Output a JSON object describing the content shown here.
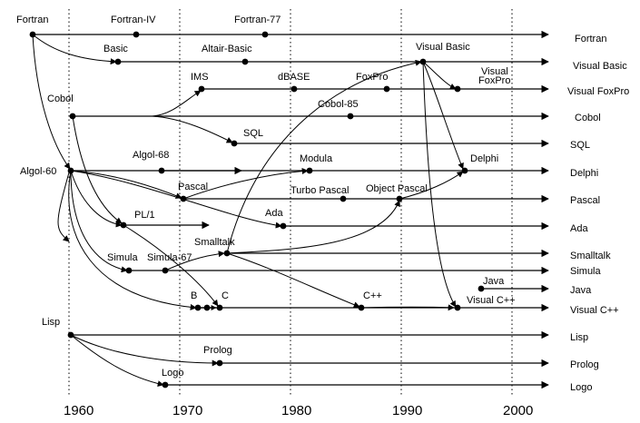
{
  "year_ticks": [
    "1960",
    "1970",
    "1980",
    "1990",
    "2000"
  ],
  "languages": [
    "Fortran",
    "Visual Basic",
    "Visual FoxPro",
    "Cobol",
    "SQL",
    "Delphi",
    "Pascal",
    "Ada",
    "Smalltalk",
    "Simula",
    "Java",
    "Visual C++",
    "Lisp",
    "Prolog",
    "Logo"
  ],
  "nodes": {
    "fortran": "Fortran",
    "fortran_iv": "Fortran-IV",
    "fortran_77": "Fortran-77",
    "basic": "Basic",
    "altair_basic": "Altair-Basic",
    "visual_basic": "Visual Basic",
    "ims": "IMS",
    "dbase": "dBASE",
    "foxpro": "FoxPro",
    "visual_foxpro": "Visual\nFoxPro",
    "cobol": "Cobol",
    "cobol_85": "Cobol-85",
    "sql": "SQL",
    "algol_68": "Algol-68",
    "modula": "Modula",
    "delphi": "Delphi",
    "algol_60": "Algol-60",
    "pascal": "Pascal",
    "turbo_pascal": "Turbo Pascal",
    "object_pascal": "Object Pascal",
    "pl1": "PL/1",
    "ada": "Ada",
    "smalltalk": "Smalltalk",
    "simula": "Simula",
    "simula_67": "Simula-67",
    "java": "Java",
    "b": "B",
    "c": "C",
    "cpp": "C++",
    "visual_cpp": "Visual C++",
    "lisp": "Lisp",
    "prolog": "Prolog",
    "logo": "Logo"
  },
  "edges": [
    [
      "fortran",
      "algol_60"
    ],
    [
      "fortran",
      "basic"
    ],
    [
      "cobol",
      "pl1"
    ],
    [
      "cobol",
      "ims"
    ],
    [
      "cobol",
      "sql"
    ],
    [
      "algol_60",
      "pl1"
    ],
    [
      "algol_60",
      "simula"
    ],
    [
      "algol_60",
      "b"
    ],
    [
      "algol_60",
      "pascal"
    ],
    [
      "algol_60",
      "ada"
    ],
    [
      "algol_60",
      "simula_67"
    ],
    [
      "algol_60",
      "algol_68"
    ],
    [
      "pascal",
      "modula"
    ],
    [
      "pascal",
      "turbo_pascal"
    ],
    [
      "pl1",
      "c"
    ],
    [
      "simula_67",
      "smalltalk"
    ],
    [
      "smalltalk",
      "cpp"
    ],
    [
      "smalltalk",
      "object_pascal"
    ],
    [
      "smalltalk",
      "visual_basic"
    ],
    [
      "visual_basic",
      "visual_foxpro"
    ],
    [
      "visual_basic",
      "delphi"
    ],
    [
      "visual_basic",
      "visual_cpp"
    ],
    [
      "object_pascal",
      "delphi"
    ],
    [
      "cpp",
      "visual_cpp"
    ],
    [
      "lisp",
      "prolog"
    ],
    [
      "lisp",
      "logo"
    ]
  ]
}
